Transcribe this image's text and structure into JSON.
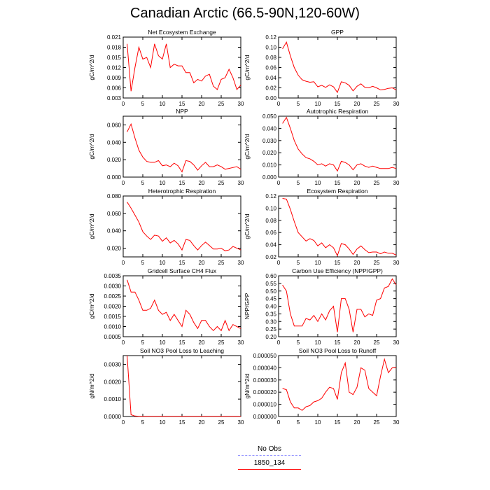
{
  "title": "Canadian Arctic (66.5-90N,120-60W)",
  "legend": [
    {
      "label": "No Obs",
      "color": "#8c8cff",
      "style": "dashed"
    },
    {
      "label": "1850_134",
      "color": "#ff0000",
      "style": "solid"
    }
  ],
  "line_color": "#ff0000",
  "chart_data": [
    {
      "type": "line",
      "title": "Net Ecosystem Exchange",
      "ylabel": "gC/m^2/d",
      "xlim": [
        0,
        30
      ],
      "ylim": [
        0.003,
        0.021
      ],
      "xticks": [
        0,
        5,
        10,
        15,
        20,
        25,
        30
      ],
      "yticks": [
        0.003,
        0.006,
        0.009,
        0.012,
        0.015,
        0.018,
        0.021
      ],
      "yticklabels": [
        "0.003",
        "0.006",
        "0.009",
        "0.012",
        "0.015",
        "0.018",
        "0.021"
      ],
      "x": [
        1,
        2,
        3,
        4,
        5,
        6,
        7,
        8,
        9,
        10,
        11,
        12,
        13,
        14,
        15,
        16,
        17,
        18,
        19,
        20,
        21,
        22,
        23,
        24,
        25,
        26,
        27,
        28,
        29,
        30
      ],
      "y": [
        0.019,
        0.005,
        0.012,
        0.018,
        0.0145,
        0.015,
        0.012,
        0.019,
        0.0155,
        0.0145,
        0.019,
        0.012,
        0.013,
        0.0125,
        0.0125,
        0.0105,
        0.0105,
        0.0075,
        0.0085,
        0.008,
        0.0095,
        0.01,
        0.0065,
        0.0055,
        0.0085,
        0.009,
        0.0115,
        0.009,
        0.0055,
        0.0068
      ]
    },
    {
      "type": "line",
      "title": "GPP",
      "ylabel": "gC/m^2/d",
      "xlim": [
        0,
        30
      ],
      "ylim": [
        0,
        0.12
      ],
      "xticks": [
        0,
        5,
        10,
        15,
        20,
        25,
        30
      ],
      "yticks": [
        0,
        0.02,
        0.04,
        0.06,
        0.08,
        0.1,
        0.12
      ],
      "yticklabels": [
        "0.00",
        "0.02",
        "0.04",
        "0.06",
        "0.08",
        "0.10",
        "0.12"
      ],
      "x": [
        1,
        2,
        3,
        4,
        5,
        6,
        7,
        8,
        9,
        10,
        11,
        12,
        13,
        14,
        15,
        16,
        17,
        18,
        19,
        20,
        21,
        22,
        23,
        24,
        25,
        26,
        27,
        28,
        29,
        30
      ],
      "y": [
        0.097,
        0.11,
        0.083,
        0.06,
        0.045,
        0.036,
        0.033,
        0.031,
        0.032,
        0.022,
        0.025,
        0.021,
        0.026,
        0.022,
        0.011,
        0.032,
        0.03,
        0.025,
        0.014,
        0.023,
        0.028,
        0.021,
        0.02,
        0.023,
        0.02,
        0.016,
        0.017,
        0.019,
        0.02,
        0.016
      ]
    },
    {
      "type": "line",
      "title": "NPP",
      "ylabel": "gC/m^2/d",
      "xlim": [
        0,
        30
      ],
      "ylim": [
        0,
        0.07
      ],
      "xticks": [
        0,
        5,
        10,
        15,
        20,
        25,
        30
      ],
      "yticks": [
        0,
        0.02,
        0.04,
        0.06
      ],
      "yticklabels": [
        "0.000",
        "0.020",
        "0.040",
        "0.060"
      ],
      "x": [
        1,
        2,
        3,
        4,
        5,
        6,
        7,
        8,
        9,
        10,
        11,
        12,
        13,
        14,
        15,
        16,
        17,
        18,
        19,
        20,
        21,
        22,
        23,
        24,
        25,
        26,
        27,
        28,
        29,
        30
      ],
      "y": [
        0.052,
        0.061,
        0.045,
        0.031,
        0.023,
        0.018,
        0.017,
        0.017,
        0.019,
        0.013,
        0.014,
        0.012,
        0.016,
        0.013,
        0.006,
        0.019,
        0.018,
        0.014,
        0.008,
        0.013,
        0.017,
        0.012,
        0.012,
        0.014,
        0.012,
        0.009,
        0.01,
        0.011,
        0.012,
        0.009
      ]
    },
    {
      "type": "line",
      "title": "Autotrophic Respiration",
      "ylabel": "gC/m^2/d",
      "xlim": [
        0,
        30
      ],
      "ylim": [
        0,
        0.05
      ],
      "xticks": [
        0,
        5,
        10,
        15,
        20,
        25,
        30
      ],
      "yticks": [
        0,
        0.01,
        0.02,
        0.03,
        0.04,
        0.05
      ],
      "yticklabels": [
        "0.000",
        "0.010",
        "0.020",
        "0.030",
        "0.040",
        "0.050"
      ],
      "x": [
        1,
        2,
        3,
        4,
        5,
        6,
        7,
        8,
        9,
        10,
        11,
        12,
        13,
        14,
        15,
        16,
        17,
        18,
        19,
        20,
        21,
        22,
        23,
        24,
        25,
        26,
        27,
        28,
        29,
        30
      ],
      "y": [
        0.044,
        0.049,
        0.04,
        0.03,
        0.023,
        0.019,
        0.016,
        0.015,
        0.013,
        0.01,
        0.011,
        0.009,
        0.011,
        0.01,
        0.005,
        0.013,
        0.012,
        0.01,
        0.006,
        0.01,
        0.011,
        0.009,
        0.008,
        0.009,
        0.008,
        0.007,
        0.007,
        0.007,
        0.008,
        0.007
      ]
    },
    {
      "type": "line",
      "title": "Heterotrophic Respiration",
      "ylabel": "gC/m^2/d",
      "xlim": [
        0,
        30
      ],
      "ylim": [
        0.01,
        0.08
      ],
      "xticks": [
        0,
        5,
        10,
        15,
        20,
        25,
        30
      ],
      "yticks": [
        0.02,
        0.04,
        0.06,
        0.08
      ],
      "yticklabels": [
        "0.020",
        "0.040",
        "0.060",
        "0.080"
      ],
      "x": [
        1,
        2,
        3,
        4,
        5,
        6,
        7,
        8,
        9,
        10,
        11,
        12,
        13,
        14,
        15,
        16,
        17,
        18,
        19,
        20,
        21,
        22,
        23,
        24,
        25,
        26,
        27,
        28,
        29,
        30
      ],
      "y": [
        0.073,
        0.066,
        0.058,
        0.05,
        0.039,
        0.034,
        0.03,
        0.035,
        0.034,
        0.028,
        0.032,
        0.026,
        0.029,
        0.025,
        0.018,
        0.03,
        0.029,
        0.023,
        0.018,
        0.023,
        0.027,
        0.023,
        0.019,
        0.019,
        0.02,
        0.017,
        0.018,
        0.022,
        0.02,
        0.018
      ]
    },
    {
      "type": "line",
      "title": "Ecosystem Respiration",
      "ylabel": "gC/m^2/d",
      "xlim": [
        0,
        30
      ],
      "ylim": [
        0.02,
        0.12
      ],
      "xticks": [
        0,
        5,
        10,
        15,
        20,
        25,
        30
      ],
      "yticks": [
        0.02,
        0.04,
        0.06,
        0.08,
        0.1,
        0.12
      ],
      "yticklabels": [
        "0.02",
        "0.04",
        "0.06",
        "0.08",
        "0.10",
        "0.12"
      ],
      "x": [
        1,
        2,
        3,
        4,
        5,
        6,
        7,
        8,
        9,
        10,
        11,
        12,
        13,
        14,
        15,
        16,
        17,
        18,
        19,
        20,
        21,
        22,
        23,
        24,
        25,
        26,
        27,
        28,
        29,
        30
      ],
      "y": [
        0.116,
        0.115,
        0.098,
        0.078,
        0.06,
        0.053,
        0.046,
        0.05,
        0.047,
        0.038,
        0.043,
        0.035,
        0.04,
        0.035,
        0.022,
        0.042,
        0.04,
        0.033,
        0.024,
        0.033,
        0.038,
        0.032,
        0.027,
        0.028,
        0.028,
        0.025,
        0.028,
        0.026,
        0.026,
        0.023
      ]
    },
    {
      "type": "line",
      "title": "Gridcell Surface CH4 Flux",
      "ylabel": "gC/m^2/d",
      "xlim": [
        0,
        30
      ],
      "ylim": [
        0.0005,
        0.0035
      ],
      "xticks": [
        0,
        5,
        10,
        15,
        20,
        25,
        30
      ],
      "yticks": [
        0.0005,
        0.001,
        0.0015,
        0.002,
        0.0025,
        0.003,
        0.0035
      ],
      "yticklabels": [
        "0.0005",
        "0.0010",
        "0.0015",
        "0.0020",
        "0.0025",
        "0.0030",
        "0.0035"
      ],
      "x": [
        1,
        2,
        3,
        4,
        5,
        6,
        7,
        8,
        9,
        10,
        11,
        12,
        13,
        14,
        15,
        16,
        17,
        18,
        19,
        20,
        21,
        22,
        23,
        24,
        25,
        26,
        27,
        28,
        29,
        30
      ],
      "y": [
        0.0033,
        0.0027,
        0.0027,
        0.0023,
        0.0018,
        0.0018,
        0.0019,
        0.0023,
        0.0018,
        0.0016,
        0.0017,
        0.0013,
        0.0016,
        0.0013,
        0.001,
        0.0018,
        0.0016,
        0.0012,
        0.0009,
        0.0013,
        0.0013,
        0.001,
        0.0008,
        0.001,
        0.0008,
        0.0013,
        0.0008,
        0.0011,
        0.001,
        0.0009
      ]
    },
    {
      "type": "line",
      "title": "Carbon Use Efficiency (NPP/GPP)",
      "ylabel": "NPP/GPP",
      "xlim": [
        0,
        30
      ],
      "ylim": [
        0.2,
        0.6
      ],
      "xticks": [
        0,
        5,
        10,
        15,
        20,
        25,
        30
      ],
      "yticks": [
        0.2,
        0.25,
        0.3,
        0.35,
        0.4,
        0.45,
        0.5,
        0.55,
        0.6
      ],
      "yticklabels": [
        "0.20",
        "0.25",
        "0.30",
        "0.35",
        "0.40",
        "0.45",
        "0.50",
        "0.55",
        "0.60"
      ],
      "x": [
        1,
        2,
        3,
        4,
        5,
        6,
        7,
        8,
        9,
        10,
        11,
        12,
        13,
        14,
        15,
        16,
        17,
        18,
        19,
        20,
        21,
        22,
        23,
        24,
        25,
        26,
        27,
        28,
        29,
        30
      ],
      "y": [
        0.54,
        0.5,
        0.35,
        0.27,
        0.27,
        0.27,
        0.32,
        0.31,
        0.34,
        0.3,
        0.35,
        0.31,
        0.37,
        0.4,
        0.23,
        0.45,
        0.45,
        0.38,
        0.23,
        0.38,
        0.38,
        0.33,
        0.35,
        0.34,
        0.44,
        0.45,
        0.52,
        0.53,
        0.58,
        0.54
      ]
    },
    {
      "type": "line",
      "title": "Soil NO3 Pool Loss to Leaching",
      "ylabel": "gN/m^2/d",
      "xlim": [
        0,
        30
      ],
      "ylim": [
        0,
        0.0035
      ],
      "xticks": [
        0,
        5,
        10,
        15,
        20,
        25,
        30
      ],
      "yticks": [
        0,
        0.001,
        0.002,
        0.003
      ],
      "yticklabels": [
        "0.0000",
        "0.0010",
        "0.0020",
        "0.0030"
      ],
      "x": [
        1,
        2,
        3,
        4,
        5,
        6,
        7,
        8,
        9,
        10,
        11,
        12,
        13,
        14,
        15,
        16,
        17,
        18,
        19,
        20,
        21,
        22,
        23,
        24,
        25,
        26,
        27,
        28,
        29,
        30
      ],
      "y": [
        0.0035,
        0.0001,
        3e-05,
        1e-05,
        1e-05,
        1e-05,
        1e-05,
        1e-05,
        1e-05,
        1e-05,
        1e-05,
        1e-05,
        1e-05,
        1e-05,
        1e-05,
        1e-05,
        1e-05,
        1e-05,
        1e-05,
        1e-05,
        1e-05,
        1e-05,
        1e-05,
        1e-05,
        1e-05,
        1e-05,
        1e-05,
        1e-05,
        1e-05,
        1e-05
      ]
    },
    {
      "type": "line",
      "title": "Soil NO3 Pool Loss to Runoff",
      "ylabel": "gN/m^2/d",
      "xlim": [
        0,
        30
      ],
      "ylim": [
        0,
        5e-05
      ],
      "xticks": [
        0,
        5,
        10,
        15,
        20,
        25,
        30
      ],
      "yticks": [
        0,
        1e-05,
        2e-05,
        3e-05,
        4e-05,
        5e-05
      ],
      "yticklabels": [
        "0.000000",
        "0.000010",
        "0.000020",
        "0.000030",
        "0.000040",
        "0.000050"
      ],
      "x": [
        1,
        2,
        3,
        4,
        5,
        6,
        7,
        8,
        9,
        10,
        11,
        12,
        13,
        14,
        15,
        16,
        17,
        18,
        19,
        20,
        21,
        22,
        23,
        24,
        25,
        26,
        27,
        28,
        29,
        30
      ],
      "y": [
        2.3e-05,
        2.2e-05,
        1.2e-05,
        7e-06,
        7e-06,
        5e-06,
        8e-06,
        9e-06,
        1.2e-05,
        1.3e-05,
        1.5e-05,
        2e-05,
        2.4e-05,
        2.3e-05,
        1.4e-05,
        3.6e-05,
        4.4e-05,
        2e-05,
        1.8e-05,
        2.4e-05,
        4e-05,
        3.8e-05,
        2.3e-05,
        2e-05,
        1.7e-05,
        3.3e-05,
        4.7e-05,
        3.6e-05,
        4e-05,
        4e-05
      ]
    }
  ]
}
